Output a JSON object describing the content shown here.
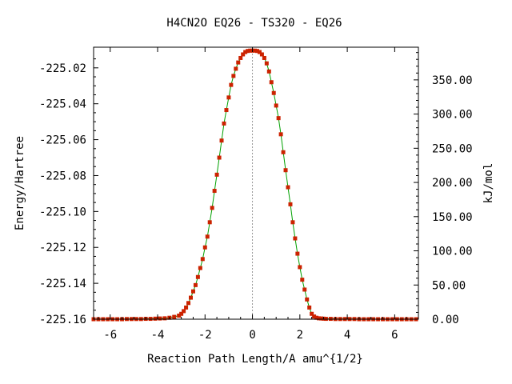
{
  "chart_data": {
    "type": "line",
    "title": "H4CN2O   EQ26 - TS320 - EQ26",
    "xlabel": "Reaction Path Length/A amu^{1/2}",
    "ylabel": "Energy/Hartree",
    "y2label": "kJ/mol",
    "xlim": [
      -6.7,
      7.0
    ],
    "ylim": [
      -225.16,
      -225.0085
    ],
    "y2lim": [
      0.0,
      397.8
    ],
    "grid": false,
    "x_ticks": [
      -6,
      -4,
      -2,
      0,
      2,
      4,
      6
    ],
    "x_tick_labels": [
      "-6",
      "-4",
      "-2",
      "0",
      "2",
      "4",
      "6"
    ],
    "y_ticks": [
      -225.02,
      -225.04,
      -225.06,
      -225.08,
      -225.1,
      -225.12,
      -225.14,
      -225.16
    ],
    "y_tick_labels": [
      "-225.02",
      "-225.04",
      "-225.06",
      "-225.08",
      "-225.10",
      "-225.12",
      "-225.14",
      "-225.16"
    ],
    "y2_ticks": [
      0,
      50,
      100,
      150,
      200,
      250,
      300,
      350
    ],
    "y2_tick_labels": [
      "0.00",
      "50.00",
      "100.00",
      "150.00",
      "200.00",
      "250.00",
      "300.00",
      "350.00"
    ],
    "ts_x": 0,
    "line_color": "#00a000",
    "marker_color": "#cc2200",
    "ts_line_color": "#999999",
    "series": [
      {
        "x": [
          -6.7,
          -6.5,
          -6.3,
          -6.1,
          -5.9,
          -5.7,
          -5.5,
          -5.3,
          -5.1,
          -4.9,
          -4.7,
          -4.5,
          -4.3,
          -4.1,
          -3.9,
          -3.7,
          -3.5,
          -3.3,
          -3.1,
          -3.0,
          -2.9,
          -2.8,
          -2.7,
          -2.6,
          -2.5,
          -2.4,
          -2.3,
          -2.2,
          -2.1,
          -2.0,
          -1.9,
          -1.8,
          -1.7,
          -1.6,
          -1.5,
          -1.4,
          -1.3,
          -1.2,
          -1.1,
          -1.0,
          -0.9,
          -0.8,
          -0.7,
          -0.6,
          -0.5,
          -0.4,
          -0.3,
          -0.2,
          -0.1,
          0.0,
          0.1,
          0.2,
          0.3,
          0.4,
          0.5,
          0.6,
          0.7,
          0.8,
          0.9,
          1.0,
          1.1,
          1.2,
          1.3,
          1.4,
          1.5,
          1.6,
          1.7,
          1.8,
          1.9,
          2.0,
          2.1,
          2.2,
          2.3,
          2.4,
          2.5,
          2.6,
          2.7,
          2.8,
          2.9,
          3.0,
          3.1,
          3.3,
          3.5,
          3.7,
          3.9,
          4.1,
          4.3,
          4.5,
          4.7,
          4.9,
          5.1,
          5.3,
          5.5,
          5.7,
          5.9,
          6.1,
          6.3,
          6.5,
          6.7,
          6.9
        ],
        "y": [
          -225.16,
          -225.16,
          -225.16,
          -225.16,
          -225.16,
          -225.16,
          -225.16,
          -225.1599,
          -225.1599,
          -225.1599,
          -225.1599,
          -225.1598,
          -225.1598,
          -225.1597,
          -225.1596,
          -225.1595,
          -225.1592,
          -225.1587,
          -225.158,
          -225.157,
          -225.1555,
          -225.1535,
          -225.151,
          -225.148,
          -225.1445,
          -225.141,
          -225.1365,
          -225.1315,
          -225.1265,
          -225.12,
          -225.114,
          -225.106,
          -225.098,
          -225.0885,
          -225.0795,
          -225.07,
          -225.0605,
          -225.051,
          -225.0435,
          -225.0365,
          -225.0295,
          -225.0245,
          -225.0205,
          -225.017,
          -225.0145,
          -225.0125,
          -225.0112,
          -225.0106,
          -225.0104,
          -225.0104,
          -225.0104,
          -225.0106,
          -225.0112,
          -225.0125,
          -225.0145,
          -225.0175,
          -225.022,
          -225.028,
          -225.034,
          -225.041,
          -225.048,
          -225.057,
          -225.067,
          -225.077,
          -225.0865,
          -225.096,
          -225.106,
          -225.115,
          -225.1235,
          -225.131,
          -225.138,
          -225.1435,
          -225.149,
          -225.1535,
          -225.157,
          -225.1585,
          -225.1592,
          -225.1595,
          -225.1596,
          -225.1597,
          -225.1598,
          -225.1598,
          -225.1599,
          -225.1599,
          -225.1599,
          -225.1599,
          -225.1599,
          -225.16,
          -225.16,
          -225.16,
          -225.16,
          -225.16,
          -225.16,
          -225.16,
          -225.16,
          -225.16,
          -225.16,
          -225.16,
          -225.16,
          -225.16
        ]
      }
    ]
  }
}
